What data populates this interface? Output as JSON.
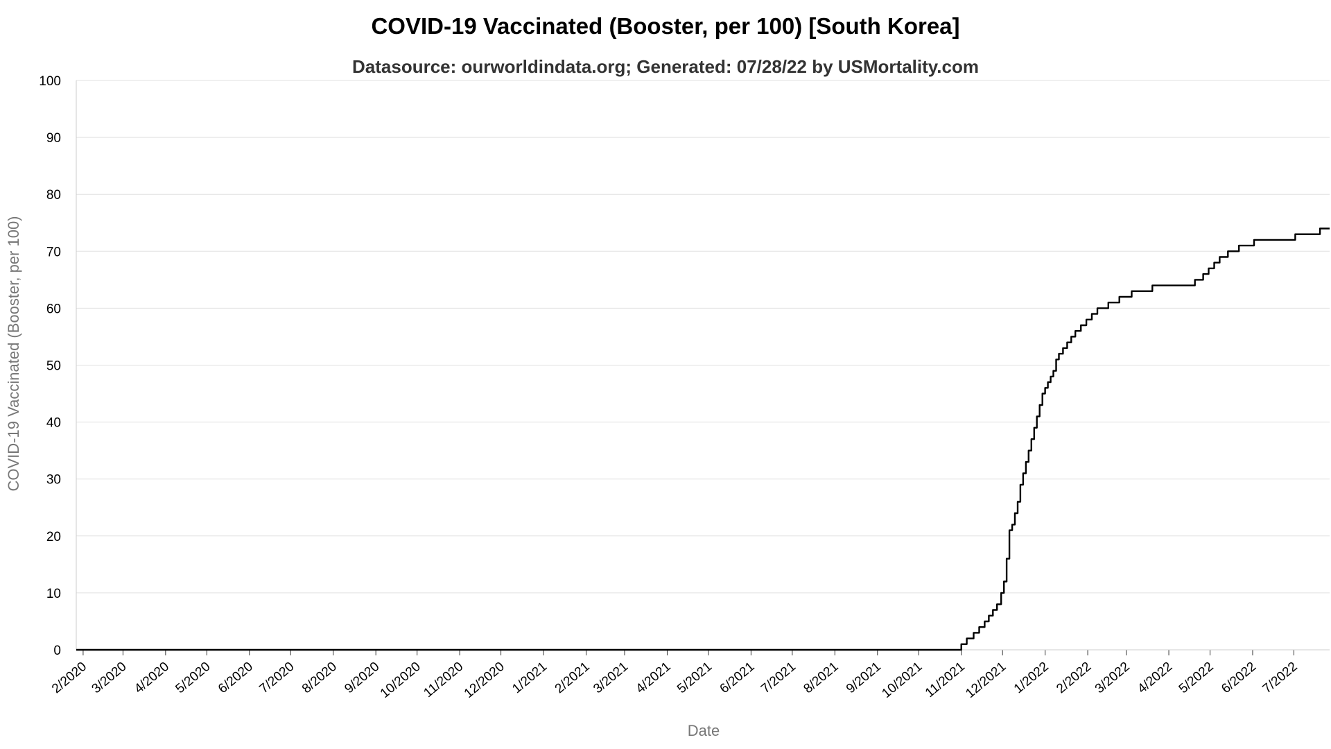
{
  "chart_data": {
    "type": "line",
    "title": "COVID-19 Vaccinated (Booster, per 100) [South Korea]",
    "subtitle": "Datasource: ourworldindata.org; Generated: 07/28/22 by USMortality.com",
    "xlabel": "Date",
    "ylabel": "COVID-19 Vaccinated (Booster, per 100)",
    "ylim": [
      0,
      100
    ],
    "xlim": [
      "2020-01-27",
      "2022-07-27"
    ],
    "yticks": [
      "0",
      "10",
      "20",
      "30",
      "40",
      "50",
      "60",
      "70",
      "80",
      "90",
      "100"
    ],
    "xticks": [
      {
        "date": "2020-02-01",
        "label": "2/2020"
      },
      {
        "date": "2020-03-01",
        "label": "3/2020"
      },
      {
        "date": "2020-04-01",
        "label": "4/2020"
      },
      {
        "date": "2020-05-01",
        "label": "5/2020"
      },
      {
        "date": "2020-06-01",
        "label": "6/2020"
      },
      {
        "date": "2020-07-01",
        "label": "7/2020"
      },
      {
        "date": "2020-08-01",
        "label": "8/2020"
      },
      {
        "date": "2020-09-01",
        "label": "9/2020"
      },
      {
        "date": "2020-10-01",
        "label": "10/2020"
      },
      {
        "date": "2020-11-01",
        "label": "11/2020"
      },
      {
        "date": "2020-12-01",
        "label": "12/2020"
      },
      {
        "date": "2021-01-01",
        "label": "1/2021"
      },
      {
        "date": "2021-02-01",
        "label": "2/2021"
      },
      {
        "date": "2021-03-01",
        "label": "3/2021"
      },
      {
        "date": "2021-04-01",
        "label": "4/2021"
      },
      {
        "date": "2021-05-01",
        "label": "5/2021"
      },
      {
        "date": "2021-06-01",
        "label": "6/2021"
      },
      {
        "date": "2021-07-01",
        "label": "7/2021"
      },
      {
        "date": "2021-08-01",
        "label": "8/2021"
      },
      {
        "date": "2021-09-01",
        "label": "9/2021"
      },
      {
        "date": "2021-10-01",
        "label": "10/2021"
      },
      {
        "date": "2021-11-01",
        "label": "11/2021"
      },
      {
        "date": "2021-12-01",
        "label": "12/2021"
      },
      {
        "date": "2022-01-01",
        "label": "1/2022"
      },
      {
        "date": "2022-02-01",
        "label": "2/2022"
      },
      {
        "date": "2022-03-01",
        "label": "3/2022"
      },
      {
        "date": "2022-04-01",
        "label": "4/2022"
      },
      {
        "date": "2022-05-01",
        "label": "5/2022"
      },
      {
        "date": "2022-06-01",
        "label": "6/2022"
      },
      {
        "date": "2022-07-01",
        "label": "7/2022"
      }
    ],
    "grid": true,
    "legend": "none",
    "line_color": "#000000",
    "series": [
      {
        "x": [
          "2020-01-27",
          "2021-10-29",
          "2021-11-01",
          "2021-11-05",
          "2021-11-10",
          "2021-11-14",
          "2021-11-18",
          "2021-11-21",
          "2021-11-24",
          "2021-11-27",
          "2021-11-30",
          "2021-12-02",
          "2021-12-04",
          "2021-12-06",
          "2021-12-08",
          "2021-12-10",
          "2021-12-12",
          "2021-12-14",
          "2021-12-16",
          "2021-12-18",
          "2021-12-20",
          "2021-12-22",
          "2021-12-24",
          "2021-12-26",
          "2021-12-28",
          "2021-12-30",
          "2022-01-01",
          "2022-01-03",
          "2022-01-05",
          "2022-01-07",
          "2022-01-09",
          "2022-01-11",
          "2022-01-14",
          "2022-01-17",
          "2022-01-20",
          "2022-01-23",
          "2022-01-27",
          "2022-01-31",
          "2022-02-04",
          "2022-02-08",
          "2022-02-12",
          "2022-02-16",
          "2022-02-20",
          "2022-02-24",
          "2022-02-28",
          "2022-03-05",
          "2022-03-12",
          "2022-03-20",
          "2022-03-28",
          "2022-04-10",
          "2022-04-20",
          "2022-04-26",
          "2022-04-30",
          "2022-05-04",
          "2022-05-08",
          "2022-05-14",
          "2022-05-22",
          "2022-06-02",
          "2022-06-15",
          "2022-06-30",
          "2022-07-02",
          "2022-07-18",
          "2022-07-20",
          "2022-07-27"
        ],
        "y": [
          0,
          0,
          1,
          2,
          3,
          4,
          5,
          6,
          7,
          8,
          10,
          12,
          16,
          21,
          22,
          24,
          26,
          29,
          31,
          33,
          35,
          37,
          39,
          41,
          43,
          45,
          46,
          47,
          48,
          49,
          51,
          52,
          53,
          54,
          55,
          56,
          57,
          58,
          59,
          60,
          60,
          61,
          61,
          62,
          62,
          63,
          63,
          64,
          64,
          64,
          65,
          66,
          67,
          68,
          69,
          70,
          71,
          72,
          72,
          72,
          73,
          73,
          74,
          74
        ]
      }
    ]
  }
}
